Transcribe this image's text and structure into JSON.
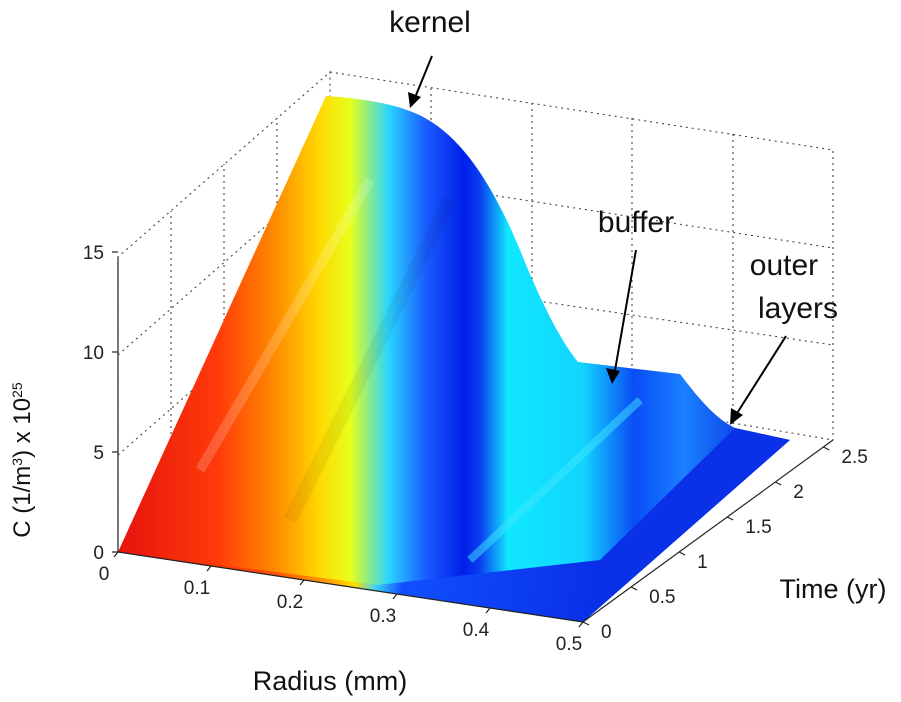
{
  "chart_data": {
    "type": "surface",
    "title": "",
    "xlabel": "Radius (mm)",
    "ylabel": "Time (yr)",
    "zlabel_prefix": "C (1/m",
    "zlabel_exp1": "3",
    "zlabel_mid": ") x 10",
    "zlabel_exp2": "25",
    "xlim": [
      0,
      0.5
    ],
    "ylim": [
      0,
      2.6
    ],
    "zlim": [
      0,
      18
    ],
    "x_ticks": [
      "0",
      "0.1",
      "0.2",
      "0.3",
      "0.4",
      "0.5"
    ],
    "y_ticks": [
      "0",
      "0.5",
      "1",
      "1.5",
      "2",
      "2.5"
    ],
    "z_ticks": [
      "0",
      "5",
      "10",
      "15"
    ],
    "grid": true,
    "colormap": "jet",
    "profile_at_final_time": [
      {
        "r": 0.0,
        "c": 18.0
      },
      {
        "r": 0.05,
        "c": 17.8
      },
      {
        "r": 0.1,
        "c": 17.0
      },
      {
        "r": 0.15,
        "c": 15.0
      },
      {
        "r": 0.2,
        "c": 11.5
      },
      {
        "r": 0.25,
        "c": 6.0
      },
      {
        "r": 0.27,
        "c": 3.2
      },
      {
        "r": 0.3,
        "c": 3.1
      },
      {
        "r": 0.4,
        "c": 2.9
      },
      {
        "r": 0.43,
        "c": 2.6
      },
      {
        "r": 0.45,
        "c": 1.1
      },
      {
        "r": 0.5,
        "c": 0.8
      }
    ],
    "annotations": [
      {
        "text": "kernel"
      },
      {
        "text": "buffer"
      },
      {
        "text": "outer"
      },
      {
        "text": "layers"
      }
    ]
  }
}
